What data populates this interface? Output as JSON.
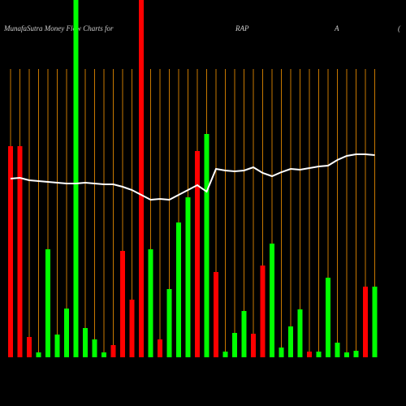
{
  "title_parts": [
    "MunafaSutra  Money Flow  Charts for",
    "RAP",
    "A",
    "("
  ],
  "chart_data": {
    "type": "bar",
    "categories": [
      null,
      null,
      null,
      null,
      null,
      null,
      null,
      null,
      null,
      null,
      null,
      null,
      null,
      null,
      null,
      null,
      null,
      null,
      null,
      null,
      null,
      null,
      null,
      null,
      null,
      null,
      null,
      null,
      null,
      null,
      null,
      null,
      null,
      null,
      null,
      null,
      null,
      null,
      null,
      null
    ],
    "series": [
      {
        "values": [
          260,
          260,
          25,
          6,
          133,
          28,
          60,
          440,
          36,
          22,
          6,
          15,
          131,
          71,
          440,
          133,
          22,
          84,
          166,
          197,
          254,
          275,
          105,
          7,
          30,
          57,
          29,
          113,
          140,
          12,
          38,
          59,
          7,
          7,
          98,
          18,
          6,
          8,
          87,
          87
        ],
        "colors": [
          "#ff0000",
          "#ff0000",
          "#ff0000",
          "#00ff00",
          "#00ff00",
          "#00ff00",
          "#00ff00",
          "#00ff00",
          "#00ff00",
          "#00ff00",
          "#00ff00",
          "#ff0000",
          "#ff0000",
          "#ff0000",
          "#ff0000",
          "#00ff00",
          "#ff0000",
          "#00ff00",
          "#00ff00",
          "#00ff00",
          "#ff0000",
          "#00ff00",
          "#ff0000",
          "#00ff00",
          "#00ff00",
          "#00ff00",
          "#ff0000",
          "#ff0000",
          "#00ff00",
          "#00ff00",
          "#00ff00",
          "#00ff00",
          "#ff0000",
          "#00ff00",
          "#00ff00",
          "#00ff00",
          "#00ff00",
          "#00ff00",
          "#ff0000",
          "#00ff00"
        ]
      },
      {
        "type": "line",
        "color": "#ffffff",
        "values": [
          220,
          221,
          218,
          217,
          216,
          215,
          214,
          214,
          215,
          214,
          213,
          213,
          210,
          206,
          200,
          194,
          195,
          194,
          200,
          206,
          212,
          204,
          232,
          230,
          229,
          230,
          234,
          227,
          223,
          228,
          232,
          231,
          233,
          235,
          236,
          243,
          248,
          250,
          250,
          249
        ]
      }
    ],
    "gridline_color": "#c87800"
  }
}
